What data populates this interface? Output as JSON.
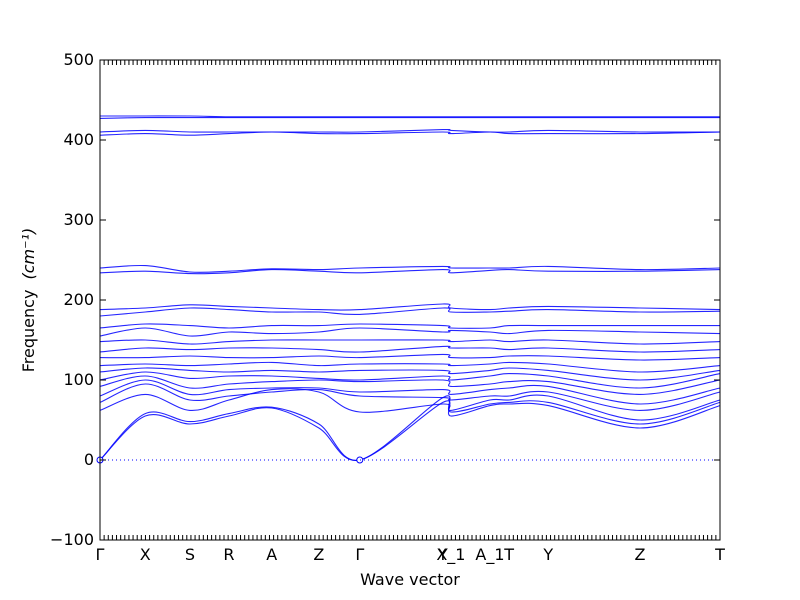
{
  "chart_data": {
    "type": "line",
    "title": "",
    "xlabel": "Wave vector",
    "ylabel": "Frequency",
    "ylabel_unit": "(cm⁻¹)",
    "ylim": [
      -100,
      500
    ],
    "y_ticks": [
      -100,
      0,
      100,
      200,
      300,
      400,
      500
    ],
    "xlim": [
      0,
      1
    ],
    "k_points": [
      {
        "label": "Γ",
        "x": 0.0
      },
      {
        "label": "X",
        "x": 0.073
      },
      {
        "label": "S",
        "x": 0.145
      },
      {
        "label": "R",
        "x": 0.208
      },
      {
        "label": "A",
        "x": 0.277
      },
      {
        "label": "Z",
        "x": 0.353
      },
      {
        "label": "Γ",
        "x": 0.419
      },
      {
        "label": "Y",
        "x": 0.553
      },
      {
        "label": "X_1",
        "x": 0.566
      },
      {
        "label": "A_1",
        "x": 0.629
      },
      {
        "label": "T",
        "x": 0.66
      },
      {
        "label": "Y",
        "x": 0.723
      },
      {
        "label": "Z",
        "x": 0.871
      },
      {
        "label": "T",
        "x": 1.0
      }
    ],
    "zero_line": 0,
    "grid": false,
    "series": [
      {
        "values": [
          0,
          55,
          45,
          55,
          65,
          40,
          0,
          72,
          55,
          68,
          70,
          68,
          40,
          68
        ]
      },
      {
        "values": [
          0,
          58,
          48,
          58,
          66,
          45,
          0,
          78,
          60,
          70,
          72,
          72,
          45,
          72
        ]
      },
      {
        "values": [
          62,
          82,
          62,
          75,
          88,
          85,
          60,
          70,
          62,
          75,
          75,
          80,
          50,
          75
        ]
      },
      {
        "values": [
          72,
          95,
          75,
          80,
          85,
          88,
          80,
          78,
          75,
          80,
          80,
          85,
          62,
          85
        ]
      },
      {
        "values": [
          80,
          100,
          82,
          88,
          90,
          90,
          85,
          88,
          82,
          88,
          90,
          92,
          70,
          90
        ]
      },
      {
        "values": [
          92,
          105,
          90,
          95,
          98,
          100,
          98,
          100,
          92,
          95,
          98,
          98,
          82,
          100
        ]
      },
      {
        "values": [
          100,
          110,
          102,
          105,
          105,
          102,
          100,
          105,
          100,
          105,
          108,
          105,
          90,
          108
        ]
      },
      {
        "values": [
          110,
          115,
          112,
          110,
          112,
          110,
          112,
          112,
          108,
          112,
          115,
          112,
          100,
          112
        ]
      },
      {
        "values": [
          118,
          120,
          118,
          120,
          122,
          118,
          120,
          120,
          118,
          120,
          122,
          120,
          110,
          118
        ]
      },
      {
        "values": [
          128,
          128,
          130,
          128,
          128,
          130,
          128,
          132,
          128,
          128,
          130,
          130,
          125,
          128
        ]
      },
      {
        "values": [
          135,
          140,
          138,
          140,
          140,
          138,
          135,
          142,
          140,
          140,
          138,
          140,
          135,
          138
        ]
      },
      {
        "values": [
          148,
          150,
          145,
          148,
          150,
          150,
          150,
          150,
          148,
          150,
          148,
          150,
          145,
          148
        ]
      },
      {
        "values": [
          155,
          165,
          155,
          160,
          158,
          160,
          165,
          160,
          162,
          160,
          158,
          162,
          160,
          158
        ]
      },
      {
        "values": [
          165,
          170,
          168,
          165,
          168,
          168,
          170,
          168,
          165,
          165,
          168,
          168,
          168,
          168
        ]
      },
      {
        "values": [
          180,
          185,
          190,
          188,
          185,
          185,
          182,
          190,
          185,
          185,
          186,
          188,
          185,
          186
        ]
      },
      {
        "values": [
          188,
          190,
          194,
          192,
          190,
          188,
          188,
          195,
          190,
          188,
          190,
          192,
          190,
          188
        ]
      },
      {
        "values": [
          234,
          236,
          233,
          234,
          238,
          236,
          234,
          238,
          234,
          237,
          238,
          236,
          236,
          238
        ]
      },
      {
        "values": [
          240,
          243,
          235,
          236,
          239,
          238,
          240,
          242,
          240,
          240,
          240,
          242,
          238,
          240
        ]
      },
      {
        "values": [
          406,
          408,
          406,
          408,
          410,
          408,
          408,
          410,
          408,
          410,
          408,
          408,
          408,
          410
        ]
      },
      {
        "values": [
          410,
          412,
          410,
          410,
          410,
          410,
          410,
          413,
          412,
          410,
          410,
          412,
          410,
          410
        ]
      },
      {
        "values": [
          427,
          428,
          428,
          428,
          428,
          428,
          428,
          428,
          428,
          428,
          428,
          428,
          428,
          428
        ]
      },
      {
        "values": [
          430,
          430,
          430,
          429,
          429,
          429,
          429,
          429,
          429,
          429,
          429,
          429,
          429,
          429
        ]
      }
    ]
  }
}
